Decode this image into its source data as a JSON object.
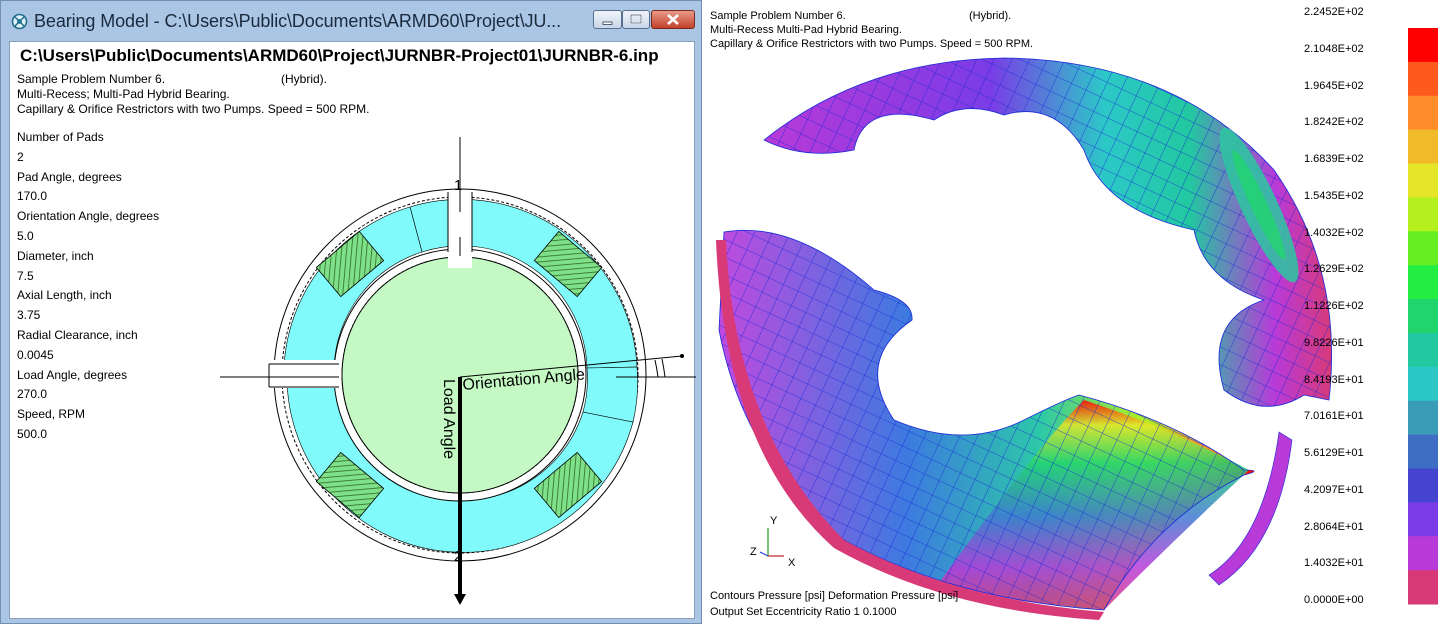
{
  "window": {
    "title": "Bearing Model - C:\\Users\\Public\\Documents\\ARMD60\\Project\\JU...",
    "file_path": "C:\\Users\\Public\\Documents\\ARMD60\\Project\\JURNBR-Project01\\JURNBR-6.inp"
  },
  "description": {
    "line1": "Sample Problem Number 6.",
    "hybrid": "(Hybrid).",
    "line2": "Multi-Recess; Multi-Pad Hybrid Bearing.",
    "line3": "Capillary & Orifice Restrictors with two Pumps. Speed = 500 RPM."
  },
  "parameters": [
    {
      "label": "Number of Pads",
      "value": "2"
    },
    {
      "label": "Pad Angle, degrees",
      "value": "170.0"
    },
    {
      "label": "Orientation Angle, degrees",
      "value": "5.0"
    },
    {
      "label": "Diameter, inch",
      "value": "7.5"
    },
    {
      "label": "Axial Length, inch",
      "value": "3.75"
    },
    {
      "label": "Radial Clearance, inch",
      "value": "0.0045"
    },
    {
      "label": "Load Angle, degrees",
      "value": "270.0"
    },
    {
      "label": "Speed, RPM",
      "value": "500.0"
    }
  ],
  "diagram": {
    "pad_label_top": "1",
    "pad_label_bottom": "2",
    "orientation_label": "Orientation Angle",
    "load_label": "Load Angle",
    "colors": {
      "pad": "#80fafa",
      "shaft": "#c4f9c4",
      "recess": "#4f8f3c"
    }
  },
  "plot": {
    "header_line1": "Sample Problem Number 6.",
    "header_hybrid": "(Hybrid).",
    "header_line2": "Multi-Recess  Multi-Pad Hybrid Bearing.",
    "header_line3": "Capillary & Orifice Restrictors with two Pumps. Speed = 500 RPM.",
    "footer_line1": "Contours  Pressure [psi]   Deformation  Pressure [psi]",
    "footer_line2": "Output Set  Eccentricity Ratio  1   0.1000",
    "axis_y": "Y",
    "axis_z": "Z",
    "axis_x": "X",
    "legend": [
      {
        "label": "2.2452E+02",
        "color": "#ff0000"
      },
      {
        "label": "2.1048E+02",
        "color": "#ff5a1e"
      },
      {
        "label": "1.9645E+02",
        "color": "#ff8c28"
      },
      {
        "label": "1.8242E+02",
        "color": "#f0ba28"
      },
      {
        "label": "1.6839E+02",
        "color": "#e6e628"
      },
      {
        "label": "1.5435E+02",
        "color": "#b4f01e"
      },
      {
        "label": "1.4032E+02",
        "color": "#66ee22"
      },
      {
        "label": "1.2629E+02",
        "color": "#22ee44"
      },
      {
        "label": "1.1226E+02",
        "color": "#20d46e"
      },
      {
        "label": "9.8226E+01",
        "color": "#22c8a0"
      },
      {
        "label": "8.4193E+01",
        "color": "#2cc8c8"
      },
      {
        "label": "7.0161E+01",
        "color": "#3a9cb6"
      },
      {
        "label": "5.6129E+01",
        "color": "#3e6ec4"
      },
      {
        "label": "4.2097E+01",
        "color": "#4444d0"
      },
      {
        "label": "2.8064E+01",
        "color": "#7a3ce6"
      },
      {
        "label": "1.4032E+01",
        "color": "#b83ad8"
      },
      {
        "label": "0.0000E+00",
        "color": "#d83a78"
      }
    ]
  }
}
